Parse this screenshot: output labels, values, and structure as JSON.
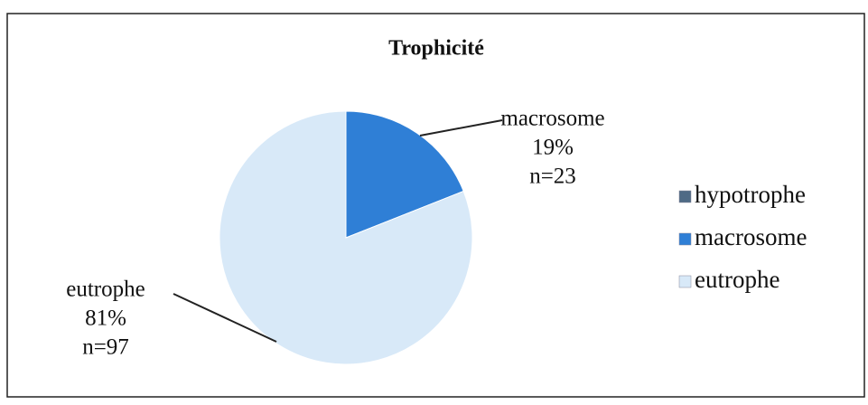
{
  "chart_data": {
    "type": "pie",
    "title": "Trophicité",
    "categories": [
      "hypotrophe",
      "macrosome",
      "eutrophe"
    ],
    "values": [
      0,
      19,
      81
    ],
    "value_labels": [
      null,
      "19%",
      "81%"
    ],
    "count_labels": [
      null,
      "n=23",
      "n=97"
    ],
    "colors": [
      "#4f6a85",
      "#2f7fd6",
      "#d8e9f8"
    ],
    "legend": "right"
  }
}
